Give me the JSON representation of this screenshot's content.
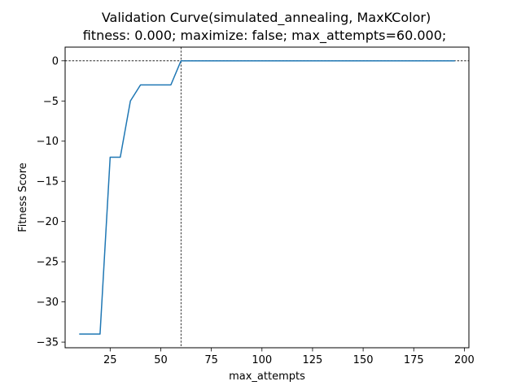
{
  "chart_data": {
    "type": "line",
    "title": "Validation Curve(simulated_annealing, MaxKColor)",
    "subtitle": "fitness: 0.000; maximize: false; max_attempts=60.000;",
    "xlabel": "max_attempts",
    "ylabel": "Fitness Score",
    "xlim": [
      2.75,
      202.25
    ],
    "ylim": [
      -35.7,
      1.7
    ],
    "x_ticks": [
      25,
      50,
      75,
      100,
      125,
      150,
      175,
      200
    ],
    "y_ticks": [
      0,
      -5,
      -10,
      -15,
      -20,
      -25,
      -30,
      -35
    ],
    "x_tick_labels": [
      "25",
      "50",
      "75",
      "100",
      "125",
      "150",
      "175",
      "200"
    ],
    "y_tick_labels": [
      "0",
      "−5",
      "−10",
      "−15",
      "−20",
      "−25",
      "−30",
      "−35"
    ],
    "grid": false,
    "reference_lines": {
      "vertical_x": 60,
      "horizontal_y": 0,
      "style": "dashed",
      "color": "#000000"
    },
    "series": [
      {
        "color": "#1f77b4",
        "x": [
          10,
          15,
          20,
          25,
          30,
          35,
          40,
          45,
          50,
          55,
          60,
          65,
          70,
          75,
          80,
          85,
          90,
          95,
          100,
          105,
          110,
          115,
          120,
          125,
          130,
          135,
          140,
          145,
          150,
          155,
          160,
          165,
          170,
          175,
          180,
          185,
          190,
          195
        ],
        "y": [
          -34,
          -34,
          -34,
          -12,
          -12,
          -5,
          -3,
          -3,
          -3,
          -3,
          0,
          0,
          0,
          0,
          0,
          0,
          0,
          0,
          0,
          0,
          0,
          0,
          0,
          0,
          0,
          0,
          0,
          0,
          0,
          0,
          0,
          0,
          0,
          0,
          0,
          0,
          0,
          0
        ]
      }
    ]
  }
}
